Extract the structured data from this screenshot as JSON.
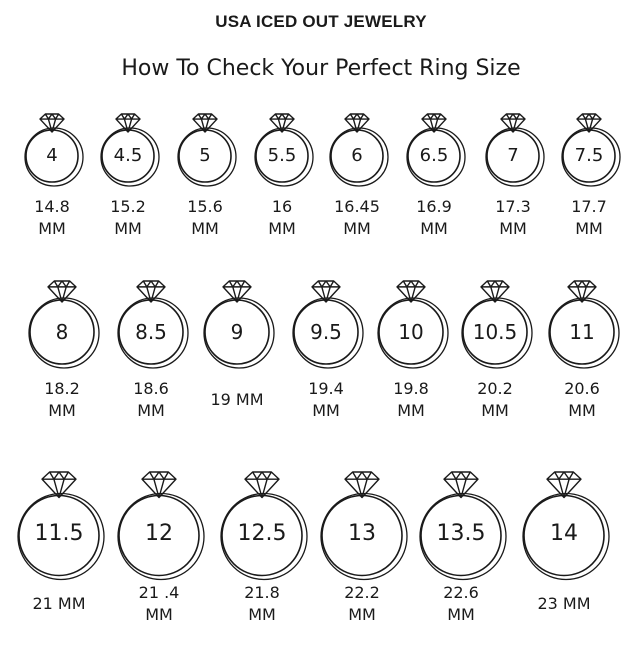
{
  "brand": "USA ICED OUT JEWELRY",
  "subtitle": "How To Check Your Perfect Ring Size",
  "rows": [
    {
      "rings": [
        {
          "size": "4",
          "mm_value": "14.8",
          "mm_unit": "MM"
        },
        {
          "size": "4.5",
          "mm_value": "15.2",
          "mm_unit": "MM"
        },
        {
          "size": "5",
          "mm_value": "15.6",
          "mm_unit": "MM"
        },
        {
          "size": "5.5",
          "mm_value": "16",
          "mm_unit": "MM"
        },
        {
          "size": "6",
          "mm_value": "16.45",
          "mm_unit": "MM"
        },
        {
          "size": "6.5",
          "mm_value": "16.9",
          "mm_unit": "MM"
        },
        {
          "size": "7",
          "mm_value": "17.3",
          "mm_unit": "MM"
        },
        {
          "size": "7.5",
          "mm_value": "17.7",
          "mm_unit": "MM"
        }
      ]
    },
    {
      "rings": [
        {
          "size": "8",
          "mm_value": "18.2",
          "mm_unit": "MM"
        },
        {
          "size": "8.5",
          "mm_value": "18.6",
          "mm_unit": "MM"
        },
        {
          "size": "9",
          "mm_value": "19 MM",
          "mm_unit": ""
        },
        {
          "size": "9.5",
          "mm_value": "19.4",
          "mm_unit": "MM"
        },
        {
          "size": "10",
          "mm_value": "19.8",
          "mm_unit": "MM"
        },
        {
          "size": "10.5",
          "mm_value": "20.2",
          "mm_unit": "MM"
        },
        {
          "size": "11",
          "mm_value": "20.6",
          "mm_unit": "MM"
        }
      ]
    },
    {
      "rings": [
        {
          "size": "11.5",
          "mm_value": "21 MM",
          "mm_unit": ""
        },
        {
          "size": "12",
          "mm_value": "21 .4",
          "mm_unit": "MM"
        },
        {
          "size": "12.5",
          "mm_value": "21.8",
          "mm_unit": "MM"
        },
        {
          "size": "13",
          "mm_value": "22.2",
          "mm_unit": "MM"
        },
        {
          "size": "13.5",
          "mm_value": "22.6",
          "mm_unit": "MM"
        },
        {
          "size": "14",
          "mm_value": "23 MM",
          "mm_unit": ""
        }
      ]
    }
  ]
}
